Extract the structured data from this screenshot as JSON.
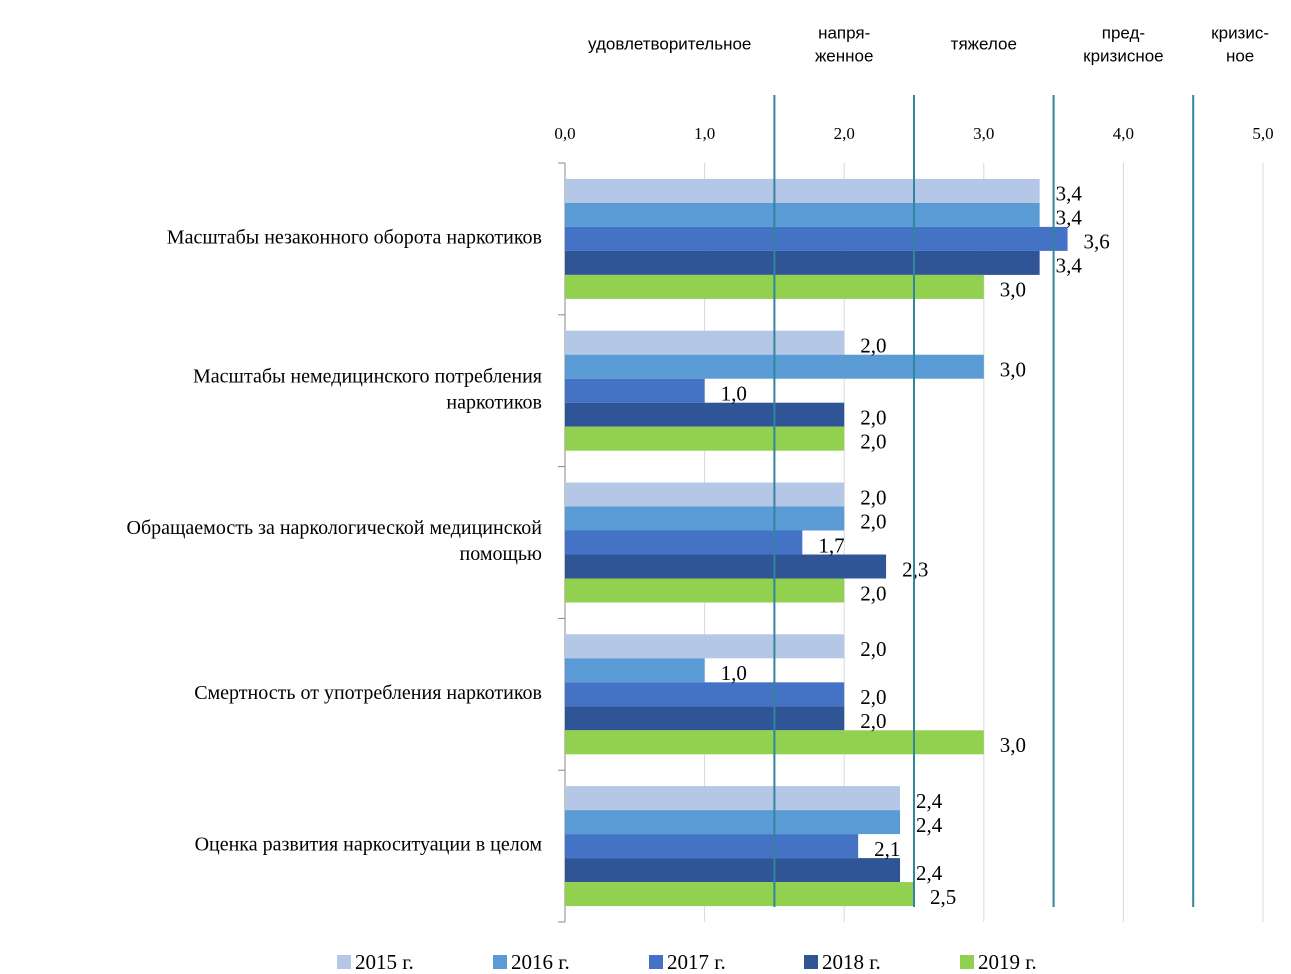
{
  "chart_data": {
    "type": "barh",
    "categories": [
      [
        "Масштабы незаконного оборота наркотиков"
      ],
      [
        "Масштабы немедицинского потребления",
        "наркотиков"
      ],
      [
        "Обращаемость за наркологической медицинской",
        "помощью"
      ],
      [
        "Смертность от употребления наркотиков"
      ],
      [
        "Оценка развития наркоситуации в целом"
      ]
    ],
    "series": [
      {
        "name": "2015 г.",
        "color": "#b4c7e7",
        "values": [
          3.4,
          2.0,
          2.0,
          2.0,
          2.4
        ],
        "value_labels": [
          "3,4",
          "2,0",
          "2,0",
          "2,0",
          "2,4"
        ]
      },
      {
        "name": "2016 г.",
        "color": "#5b9bd5",
        "values": [
          3.4,
          3.0,
          2.0,
          1.0,
          2.4
        ],
        "value_labels": [
          "3,4",
          "3,0",
          "2,0",
          "1,0",
          "2,4"
        ]
      },
      {
        "name": "2017 г.",
        "color": "#4472c4",
        "values": [
          3.6,
          1.0,
          1.7,
          2.0,
          2.1
        ],
        "value_labels": [
          "3,6",
          "1,0",
          "1,7",
          "2,0",
          "2,1"
        ]
      },
      {
        "name": "2018 г.",
        "color": "#2f5597",
        "values": [
          3.4,
          2.0,
          2.3,
          2.0,
          2.4
        ],
        "value_labels": [
          "3,4",
          "2,0",
          "2,3",
          "2,0",
          "2,4"
        ]
      },
      {
        "name": "2019 г.",
        "color": "#92d050",
        "values": [
          3.0,
          2.0,
          2.0,
          3.0,
          2.5
        ],
        "value_labels": [
          "3,0",
          "2,0",
          "2,0",
          "3,0",
          "2,5"
        ]
      }
    ],
    "xlim": [
      0,
      5
    ],
    "xticks": [
      {
        "value": 0,
        "label": "0,0"
      },
      {
        "value": 1,
        "label": "1,0"
      },
      {
        "value": 2,
        "label": "2,0"
      },
      {
        "value": 3,
        "label": "3,0"
      },
      {
        "value": 4,
        "label": "4,0"
      },
      {
        "value": 5,
        "label": "5,0"
      }
    ],
    "grid": true,
    "thresholds": [
      1.5,
      2.5,
      3.5,
      4.5
    ],
    "threshold_color": "#31859c",
    "zones": [
      [
        "удовлетворительное"
      ],
      [
        "напря-",
        "женное"
      ],
      [
        "тяжелое"
      ],
      [
        "пред-",
        "кризисное"
      ],
      [
        "кризис-",
        "ное"
      ]
    ],
    "legend": "bottom"
  }
}
